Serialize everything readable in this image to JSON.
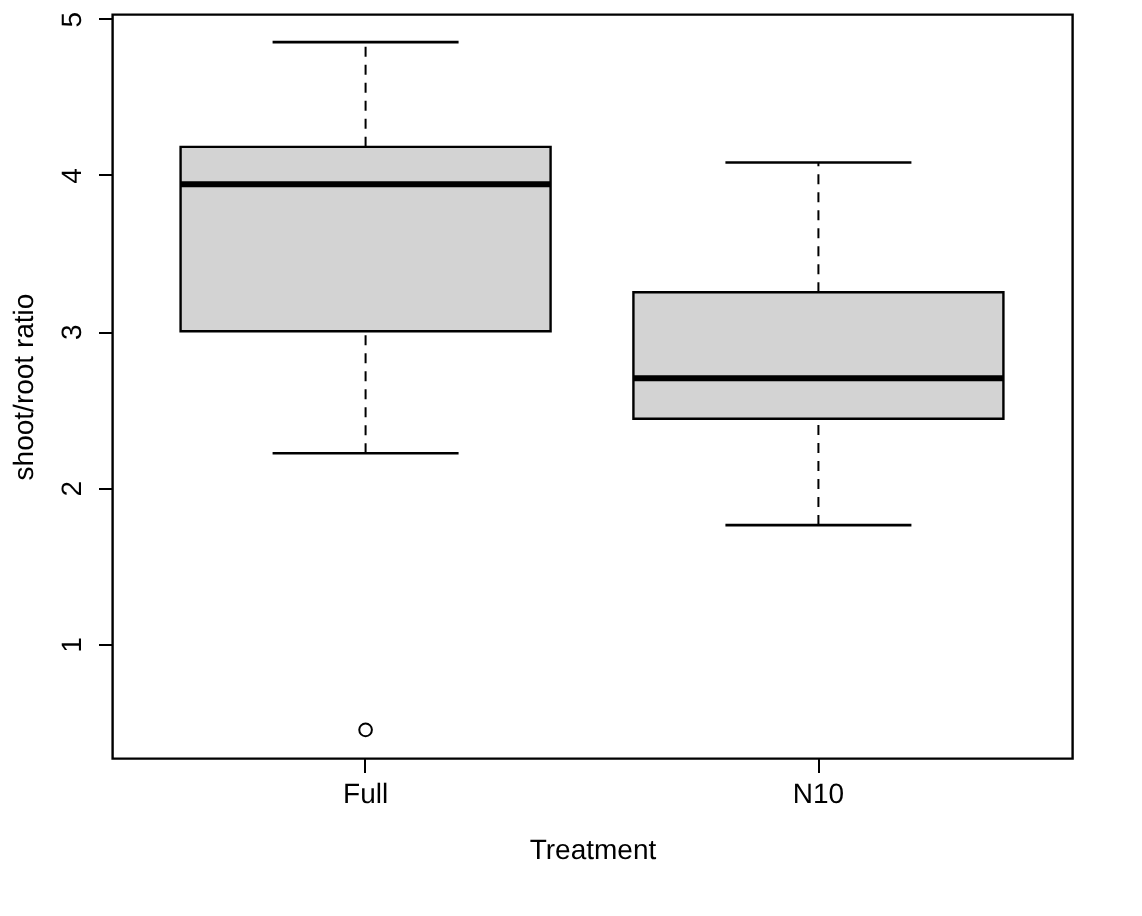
{
  "chart_data": {
    "type": "box",
    "xlabel": "Treatment",
    "ylabel": "shoot/root ratio",
    "categories": [
      "Full",
      "N10"
    ],
    "series": [
      {
        "color": "#d3d3d3",
        "boxes": [
          {
            "low": 2.22,
            "q1": 3.0,
            "median": 3.94,
            "q3": 4.18,
            "high": 4.85,
            "outliers": [
              0.45
            ]
          },
          {
            "low": 1.76,
            "q1": 2.44,
            "median": 2.7,
            "q3": 3.25,
            "high": 4.08
          }
        ]
      }
    ],
    "ylim": [
      0.27,
      5.03
    ],
    "yticks": [
      1,
      2,
      3,
      4,
      5
    ],
    "grid": false
  }
}
